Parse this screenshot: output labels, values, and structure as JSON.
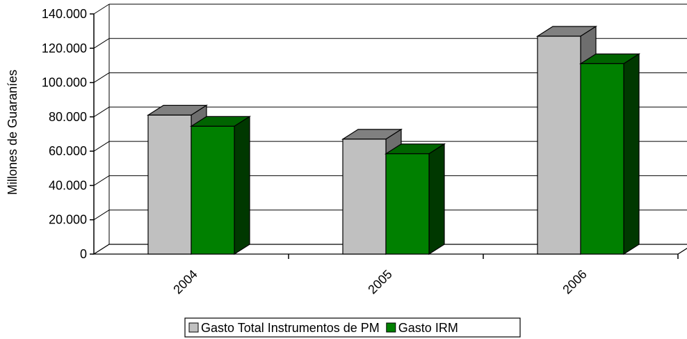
{
  "chart_data": {
    "type": "bar",
    "categories": [
      "2004",
      "2005",
      "2006"
    ],
    "series": [
      {
        "name": "Gasto Total Instrumentos de PM",
        "values": [
          81000,
          67000,
          127000
        ],
        "color": "#c0c0c0"
      },
      {
        "name": "Gasto IRM",
        "values": [
          74500,
          58500,
          111000
        ],
        "color": "#008000"
      }
    ],
    "title": "",
    "xlabel": "",
    "ylabel": "Millones de Guaraníes",
    "ylim": [
      0,
      140000
    ],
    "yticks": [
      0,
      20000,
      40000,
      60000,
      80000,
      100000,
      120000,
      140000
    ],
    "ytick_labels": [
      "0",
      "20.000",
      "40.000",
      "60.000",
      "80.000",
      "100.000",
      "120.000",
      "140.000"
    ],
    "grid": true,
    "legend": "bottom",
    "style": "3d-clustered-column"
  }
}
